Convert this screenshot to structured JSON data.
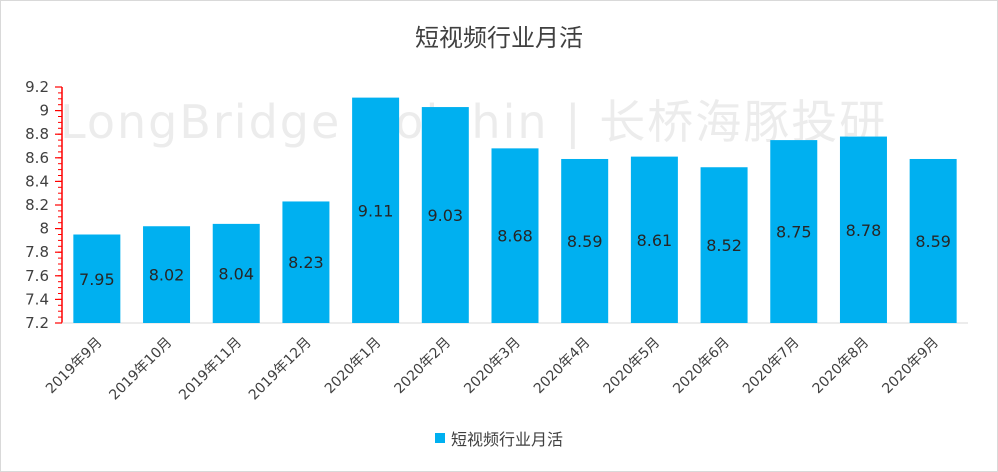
{
  "chart_data": {
    "type": "bar",
    "title": "短视频行业月活",
    "categories": [
      "2019年9月",
      "2019年10月",
      "2019年11月",
      "2019年12月",
      "2020年1月",
      "2020年2月",
      "2020年3月",
      "2020年4月",
      "2020年5月",
      "2020年6月",
      "2020年7月",
      "2020年8月",
      "2020年9月"
    ],
    "series": [
      {
        "name": "短视频行业月活",
        "values": [
          7.95,
          8.02,
          8.04,
          8.23,
          9.11,
          9.03,
          8.68,
          8.59,
          8.61,
          8.52,
          8.75,
          8.78,
          8.59
        ]
      }
    ],
    "ylim": [
      7.2,
      9.2
    ],
    "yticks": [
      "7.2",
      "7.4",
      "7.6",
      "7.8",
      "8",
      "8.2",
      "8.4",
      "8.6",
      "8.8",
      "9",
      "9.2"
    ],
    "xlabel": "",
    "ylabel": "",
    "grid": false,
    "legend_position": "bottom",
    "bar_color": "#00b0f0",
    "axis_accent_color": "#ff0000"
  },
  "watermark": "LongBridge Dolphin | 长桥海豚投研"
}
